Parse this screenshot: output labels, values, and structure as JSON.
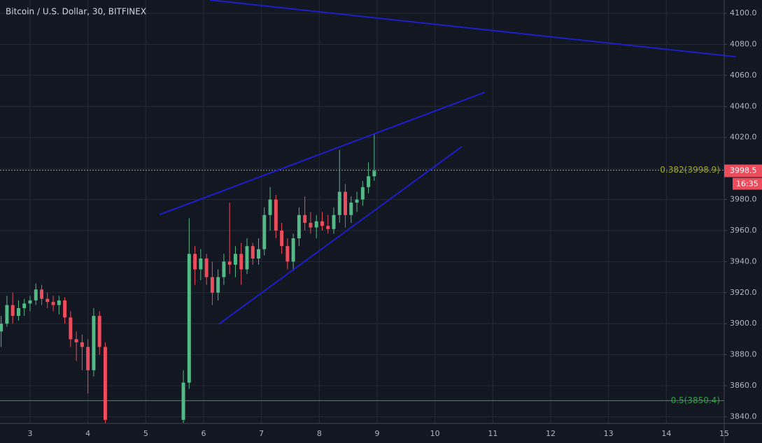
{
  "chart_data": {
    "type": "candlestick",
    "title": "Bitcoin / U.S. Dollar, 30, BITFINEX",
    "up_color": "#53b987",
    "down_color": "#eb4d5c",
    "grid": true,
    "xlim": [
      2.48,
      15
    ],
    "ylim": [
      3835.7,
      4108.6
    ],
    "xticks": [
      3,
      4,
      5,
      6,
      7,
      8,
      9,
      10,
      11,
      12,
      13,
      14,
      15
    ],
    "yticks": [
      {
        "value": 3840,
        "label": "3840.0"
      },
      {
        "value": 3860,
        "label": "3860.0"
      },
      {
        "value": 3880,
        "label": "3880.0"
      },
      {
        "value": 3900,
        "label": "3900.0"
      },
      {
        "value": 3920,
        "label": "3920.0"
      },
      {
        "value": 3940,
        "label": "3940.0"
      },
      {
        "value": 3960,
        "label": "3960.0"
      },
      {
        "value": 3980,
        "label": "3980.0"
      },
      {
        "value": 4000,
        "label": "4000.0"
      },
      {
        "value": 4020,
        "label": "4020.0"
      },
      {
        "value": 4040,
        "label": "4040.0"
      },
      {
        "value": 4060,
        "label": "4060.0"
      },
      {
        "value": 4080,
        "label": "4080.0"
      },
      {
        "value": 4100,
        "label": "4100.0"
      }
    ],
    "x": [
      2.5,
      2.6,
      2.7,
      2.8,
      2.9,
      3.0,
      3.1,
      3.2,
      3.3,
      3.4,
      3.5,
      3.6,
      3.7,
      3.8,
      3.9,
      4.0,
      4.1,
      4.2,
      4.3,
      5.65,
      5.75,
      5.85,
      5.95,
      6.05,
      6.15,
      6.25,
      6.35,
      6.45,
      6.55,
      6.65,
      6.75,
      6.85,
      6.95,
      7.05,
      7.15,
      7.25,
      7.35,
      7.45,
      7.55,
      7.65,
      7.75,
      7.85,
      7.95,
      8.05,
      8.15,
      8.25,
      8.35,
      8.45,
      8.55,
      8.65,
      8.75,
      8.85,
      8.95
    ],
    "open": [
      3895,
      3900,
      3912,
      3905,
      3910,
      3913,
      3915,
      3922,
      3916,
      3914,
      3912,
      3915,
      3904,
      3890,
      3888,
      3885,
      3870,
      3905,
      3885,
      3838,
      3862,
      3945,
      3935,
      3942,
      3930,
      3920,
      3930,
      3940,
      3938,
      3945,
      3935,
      3950,
      3942,
      3948,
      3970,
      3980,
      3960,
      3950,
      3940,
      3955,
      3970,
      3965,
      3962,
      3966,
      3963,
      3961,
      3970,
      3985,
      3970,
      3978,
      3980,
      3988,
      3995
    ],
    "high": [
      3905,
      3918,
      3920,
      3915,
      3916,
      3918,
      3926,
      3925,
      3920,
      3918,
      3918,
      3917,
      3908,
      3895,
      3893,
      3890,
      3910,
      3908,
      3888,
      3870,
      3968,
      3950,
      3948,
      3945,
      3940,
      3935,
      3945,
      3978,
      3950,
      3952,
      3955,
      3952,
      3955,
      3975,
      3988,
      3983,
      3965,
      3955,
      3958,
      3975,
      3982,
      3972,
      3970,
      3972,
      3970,
      3975,
      4012,
      3990,
      3982,
      3985,
      3992,
      4004,
      4022
    ],
    "low": [
      3885,
      3898,
      3900,
      3902,
      3905,
      3908,
      3912,
      3912,
      3910,
      3908,
      3906,
      3900,
      3885,
      3876,
      3870,
      3855,
      3866,
      3880,
      3836,
      3836,
      3858,
      3925,
      3928,
      3925,
      3912,
      3915,
      3925,
      3932,
      3930,
      3925,
      3932,
      3938,
      3938,
      3944,
      3960,
      3955,
      3945,
      3935,
      3934,
      3950,
      3960,
      3958,
      3955,
      3960,
      3958,
      3958,
      3965,
      3962,
      3965,
      3972,
      3976,
      3984,
      3992
    ],
    "close": [
      3900,
      3912,
      3905,
      3910,
      3913,
      3915,
      3922,
      3916,
      3914,
      3912,
      3915,
      3904,
      3890,
      3888,
      3885,
      3870,
      3905,
      3885,
      3838,
      3862,
      3945,
      3935,
      3942,
      3930,
      3920,
      3930,
      3940,
      3938,
      3945,
      3935,
      3950,
      3942,
      3948,
      3970,
      3980,
      3960,
      3950,
      3940,
      3955,
      3970,
      3965,
      3962,
      3966,
      3963,
      3961,
      3970,
      3985,
      3970,
      3978,
      3980,
      3988,
      3995,
      3998.5
    ],
    "countdown": "16:35",
    "trend_lines": [
      {
        "color": "#1e1ec8",
        "x": [
          6.11,
          15.2
        ],
        "y": [
          4108.6,
          4072
        ]
      },
      {
        "color": "#1e1ec8",
        "x": [
          5.24,
          10.86
        ],
        "y": [
          3970.3,
          4049.1
        ]
      },
      {
        "color": "#1e1ec8",
        "x": [
          6.26,
          10.46
        ],
        "y": [
          3899.6,
          4014.0
        ]
      }
    ],
    "levels": [
      {
        "value": 3998.9,
        "label": "0.382(3998.9)",
        "color": "#9fa82a",
        "dashed": true
      },
      {
        "value": 3850.4,
        "label": "0.5(3850.4)",
        "color": "#2ea043",
        "dashed": false
      }
    ]
  }
}
